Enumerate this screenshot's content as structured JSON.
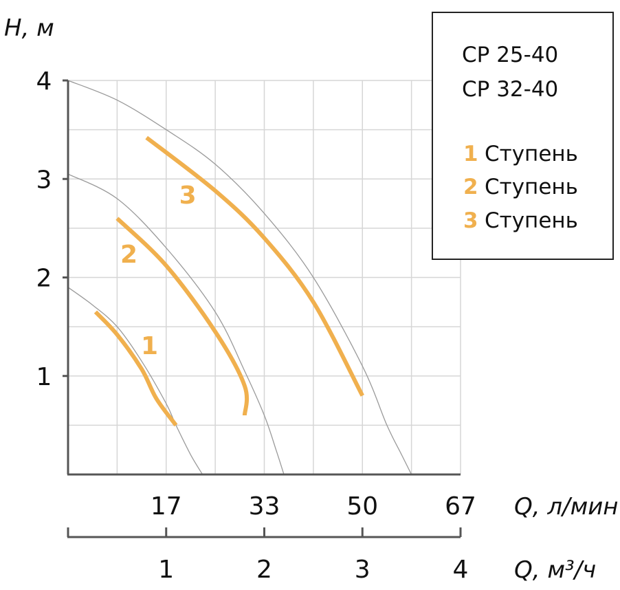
{
  "chart_data": {
    "type": "line",
    "y_axis": {
      "title": "H, м",
      "ticks": [
        "1",
        "2",
        "3",
        "4"
      ],
      "ylim": [
        0,
        4
      ]
    },
    "x_axis_top": {
      "title": "Q, л/мин",
      "ticks": [
        "17",
        "33",
        "50",
        "67"
      ],
      "xlim": [
        0,
        67
      ]
    },
    "x_axis_bottom": {
      "title": "Q, м³/ч",
      "ticks": [
        "1",
        "2",
        "3",
        "4"
      ],
      "xlim": [
        0,
        4
      ]
    },
    "grid": true,
    "legend": {
      "position": "top-right",
      "models": [
        "CP 25-40",
        "CP 32-40"
      ],
      "entries": [
        {
          "num": "1",
          "label": "Ступень"
        },
        {
          "num": "2",
          "label": "Ступень"
        },
        {
          "num": "3",
          "label": "Ступень"
        }
      ]
    },
    "series": [
      {
        "name": "1",
        "full_curve": [
          [
            0,
            1.9
          ],
          [
            0.25,
            1.72
          ],
          [
            0.5,
            1.5
          ],
          [
            0.75,
            1.15
          ],
          [
            1.0,
            0.72
          ],
          [
            1.1,
            0.5
          ],
          [
            1.25,
            0.2
          ],
          [
            1.37,
            0.0
          ]
        ],
        "highlight": [
          [
            0.28,
            1.65
          ],
          [
            0.5,
            1.42
          ],
          [
            0.75,
            1.07
          ],
          [
            0.9,
            0.77
          ],
          [
            1.1,
            0.5
          ]
        ]
      },
      {
        "name": "2",
        "full_curve": [
          [
            0,
            3.05
          ],
          [
            0.5,
            2.8
          ],
          [
            1.0,
            2.3
          ],
          [
            1.5,
            1.65
          ],
          [
            1.8,
            1.05
          ],
          [
            2.0,
            0.6
          ],
          [
            2.12,
            0.25
          ],
          [
            2.2,
            0.0
          ]
        ],
        "highlight": [
          [
            0.5,
            2.6
          ],
          [
            1.0,
            2.12
          ],
          [
            1.5,
            1.45
          ],
          [
            1.8,
            0.9
          ],
          [
            1.8,
            0.6
          ]
        ]
      },
      {
        "name": "3",
        "full_curve": [
          [
            0,
            4.0
          ],
          [
            0.5,
            3.8
          ],
          [
            1.0,
            3.5
          ],
          [
            1.5,
            3.15
          ],
          [
            2.0,
            2.65
          ],
          [
            2.5,
            2.0
          ],
          [
            3.0,
            1.1
          ],
          [
            3.25,
            0.5
          ],
          [
            3.4,
            0.2
          ],
          [
            3.5,
            0.0
          ]
        ],
        "highlight": [
          [
            0.8,
            3.42
          ],
          [
            1.5,
            2.88
          ],
          [
            2.0,
            2.4
          ],
          [
            2.5,
            1.75
          ],
          [
            3.0,
            0.8
          ]
        ]
      }
    ]
  }
}
